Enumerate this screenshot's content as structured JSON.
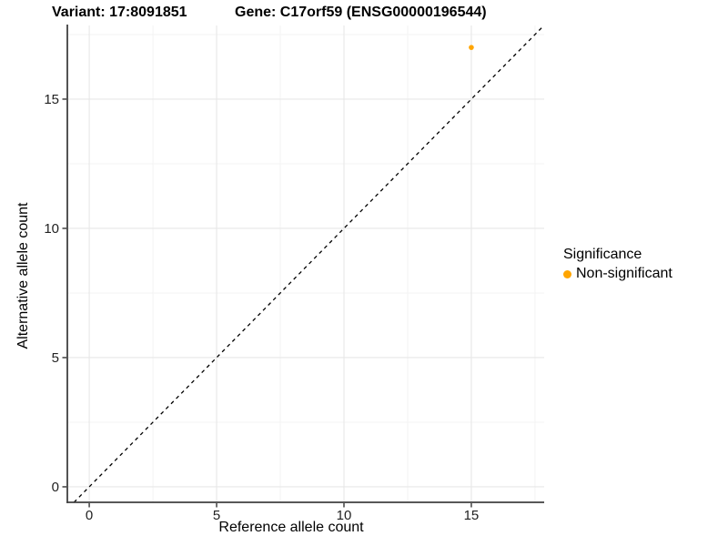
{
  "chart_data": {
    "type": "scatter",
    "titles": {
      "left": "Variant: 17:8091851",
      "right": "Gene: C17orf59 (ENSG00000196544)"
    },
    "xlabel": "Reference allele count",
    "ylabel": "Alternative allele count",
    "xlim": [
      -0.86,
      17.86
    ],
    "ylim": [
      -0.6,
      17.85
    ],
    "x_major_ticks": [
      0,
      5,
      10,
      15
    ],
    "y_major_ticks": [
      0,
      5,
      10,
      15
    ],
    "x_minor_gridlines": [
      2.5,
      7.5,
      12.5,
      17.5
    ],
    "y_minor_gridlines": [
      2.5,
      7.5,
      12.5,
      17.5
    ],
    "grid": true,
    "points": [
      {
        "x": 15,
        "y": 17,
        "series": "Non-significant"
      }
    ],
    "identity_line": {
      "slope": 1,
      "intercept": 0,
      "style": "dashed"
    },
    "legend": {
      "title": "Significance",
      "position": "right",
      "items": [
        {
          "label": "Non-significant",
          "color": "#FFA500"
        }
      ]
    },
    "colors": {
      "point": "#FFA500",
      "axis_line": "#404040",
      "tick_mark": "#333333",
      "tick_label": "#222222",
      "major_grid": "#E7E7E7",
      "minor_grid": "#F3F3F3",
      "dashed_line": "#000000",
      "background": "#FFFFFF"
    }
  }
}
